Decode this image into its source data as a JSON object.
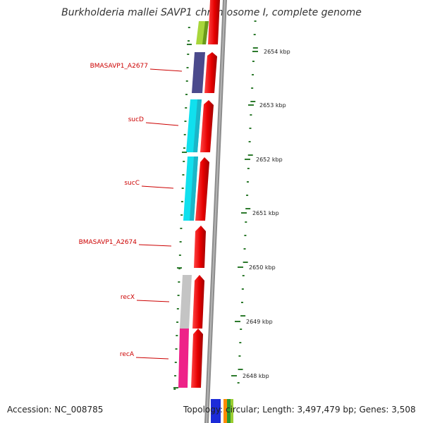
{
  "title": "Burkholderia mallei SAVP1 chromosome I, complete genome",
  "footer": {
    "accession": "Accession: NC_008785",
    "summary": "Topology: circular; Length: 3,497,479 bp; Genes: 3,508"
  },
  "kbp_marks": [
    "2654 kbp",
    "2653 kbp",
    "2652 kbp",
    "2651 kbp",
    "2650 kbp",
    "2649 kbp",
    "2648 kbp"
  ],
  "gene_labels": [
    "BMASAVP1_A2677",
    "sucD",
    "sucC",
    "BMASAVP1_A2674",
    "recX",
    "recA"
  ],
  "colors": {
    "backbone": "#8c8c8c",
    "forward_feature": "#e60000",
    "tick": "#2d7a2d",
    "label": "#cc0000",
    "cog_segments": [
      "#a8d63a",
      "#4b4a8c",
      "#10e0ee",
      "#10e0ee",
      "#c4c4c4",
      "#ee2288"
    ]
  }
}
